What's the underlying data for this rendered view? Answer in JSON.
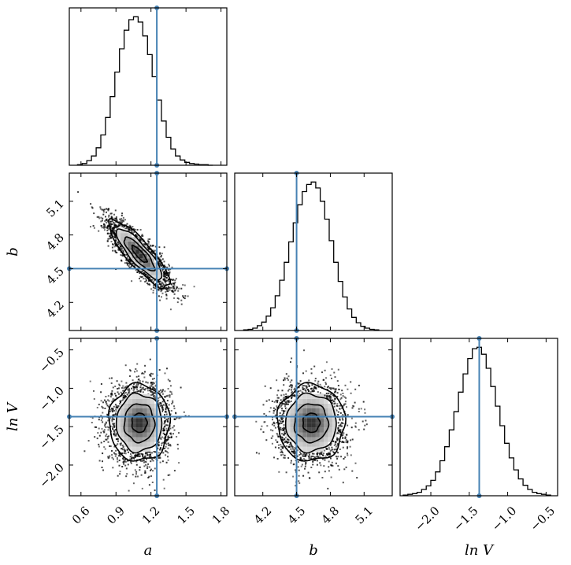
{
  "chart_data": {
    "type": "corner",
    "parameters": [
      {
        "key": "a",
        "label": "a",
        "range": [
          0.5,
          1.85
        ],
        "ticks": [
          0.6,
          0.9,
          1.2,
          1.5,
          1.8
        ],
        "tick_labels": [
          "0.6",
          "0.9",
          "1.2",
          "1.5",
          "1.8"
        ],
        "truth": 1.25,
        "mean": 1.1,
        "sd": 0.13
      },
      {
        "key": "b",
        "label": "b",
        "range": [
          3.95,
          5.35
        ],
        "ticks": [
          4.2,
          4.5,
          4.8,
          5.1
        ],
        "tick_labels": [
          "4.2",
          "4.5",
          "4.8",
          "5.1"
        ],
        "truth": 4.5,
        "mean": 4.63,
        "sd": 0.15
      },
      {
        "key": "lnV",
        "label": "ln V",
        "range": [
          -2.4,
          -0.35
        ],
        "ticks": [
          -2.0,
          -1.5,
          -1.0,
          -0.5
        ],
        "tick_labels": [
          "−2.0",
          "−1.5",
          "−1.0",
          "−0.5"
        ],
        "truth": -1.37,
        "mean": -1.45,
        "sd": 0.25
      }
    ],
    "histograms": [
      {
        "param": "a",
        "bin_centers": [
          0.59,
          0.63,
          0.67,
          0.71,
          0.75,
          0.79,
          0.83,
          0.87,
          0.91,
          0.95,
          0.99,
          1.03,
          1.07,
          1.11,
          1.15,
          1.19,
          1.23,
          1.27,
          1.31,
          1.35,
          1.39,
          1.43,
          1.47,
          1.51,
          1.55,
          1.59,
          1.63,
          1.67,
          1.71
        ],
        "counts": [
          1,
          3,
          8,
          16,
          30,
          52,
          82,
          118,
          160,
          200,
          232,
          250,
          255,
          246,
          222,
          190,
          152,
          112,
          76,
          48,
          28,
          16,
          9,
          5,
          3,
          2,
          1,
          1,
          0
        ]
      },
      {
        "param": "b",
        "bin_centers": [
          4.05,
          4.09,
          4.13,
          4.17,
          4.21,
          4.25,
          4.29,
          4.33,
          4.37,
          4.41,
          4.45,
          4.49,
          4.53,
          4.57,
          4.61,
          4.65,
          4.69,
          4.73,
          4.77,
          4.81,
          4.85,
          4.89,
          4.93,
          4.97,
          5.01,
          5.05,
          5.09,
          5.13,
          5.17,
          5.21
        ],
        "counts": [
          1,
          2,
          4,
          8,
          14,
          24,
          38,
          58,
          84,
          114,
          148,
          180,
          210,
          232,
          244,
          248,
          238,
          216,
          186,
          150,
          114,
          82,
          56,
          36,
          22,
          13,
          7,
          4,
          2,
          1
        ]
      },
      {
        "param": "lnV",
        "bin_centers": [
          -2.33,
          -2.27,
          -2.21,
          -2.15,
          -2.09,
          -2.03,
          -1.97,
          -1.91,
          -1.85,
          -1.79,
          -1.73,
          -1.67,
          -1.61,
          -1.55,
          -1.49,
          -1.43,
          -1.37,
          -1.31,
          -1.25,
          -1.19,
          -1.13,
          -1.07,
          -1.01,
          -0.95,
          -0.89,
          -0.83,
          -0.77,
          -0.71,
          -0.65,
          -0.59,
          -0.53,
          -0.47
        ],
        "counts": [
          1,
          2,
          3,
          5,
          9,
          14,
          22,
          34,
          50,
          70,
          94,
          120,
          148,
          174,
          196,
          210,
          212,
          202,
          182,
          156,
          128,
          100,
          75,
          54,
          37,
          24,
          15,
          9,
          5,
          3,
          2,
          1
        ]
      }
    ],
    "joint_2d": [
      {
        "x": "a",
        "y": "b",
        "correlation": -0.85
      },
      {
        "x": "a",
        "y": "lnV",
        "correlation": 0.0
      },
      {
        "x": "b",
        "y": "lnV",
        "correlation": 0.0
      }
    ],
    "contour_levels_sigma": [
      0.5,
      1.0,
      1.5,
      2.0
    ],
    "grid": false,
    "truth_color": "#4682b4"
  }
}
